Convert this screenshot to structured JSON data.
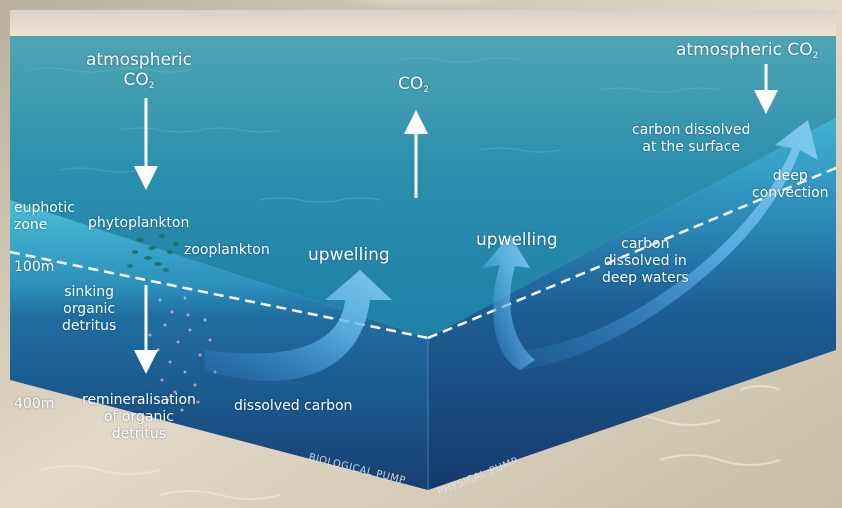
{
  "labels": {
    "atm_co2_left": "atmospheric",
    "atm_co2_left_2": "CO",
    "co2_center": "CO",
    "atm_co2_right": "atmospheric CO",
    "co2_subscript": "2",
    "carbon_dissolved_surface_1": "carbon dissolved",
    "carbon_dissolved_surface_2": "at the surface",
    "deep_convection_1": "deep",
    "deep_convection_2": "convection",
    "euphotic_1": "euphotic",
    "euphotic_2": "zone",
    "phytoplankton": "phytoplankton",
    "zooplankton": "zooplankton",
    "upwelling_left": "upwelling",
    "upwelling_right": "upwelling",
    "carbon_deep_1": "carbon",
    "carbon_deep_2": "dissolved in",
    "carbon_deep_3": "deep waters",
    "depth_100": "100m",
    "depth_400": "400m",
    "sinking_1": "sinking",
    "sinking_2": "organic",
    "sinking_3": "detritus",
    "remin_1": "remineralisation",
    "remin_2": "of organic",
    "remin_3": "detritus",
    "dissolved_carbon": "dissolved carbon",
    "biological_pump": "BIOLOGICAL PUMP",
    "physical_pump": "PHYSICAL PUMP"
  },
  "colors": {
    "sky": "#e9dccb",
    "sea_surface": "#2aa3bd",
    "deep_water": "#184f86",
    "euphotic_water": "#3db4d0",
    "sand": "#cfc3ad",
    "arrow_blue": "#5fb8e6"
  }
}
